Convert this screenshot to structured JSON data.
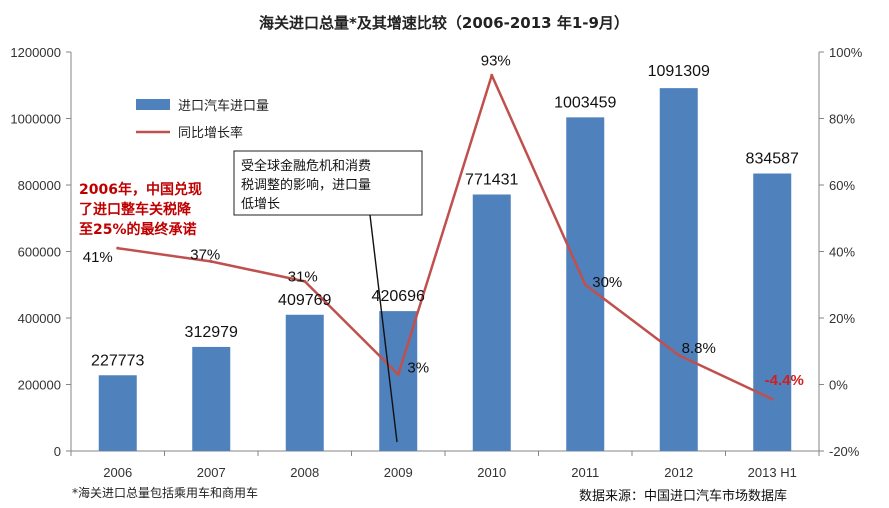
{
  "chart_data": {
    "type": "bar",
    "title": "海关进口总量*及其增速比较（2006-2013 年1-9月）",
    "categories": [
      "2006",
      "2007",
      "2008",
      "2009",
      "2010",
      "2011",
      "2012",
      "2013 H1"
    ],
    "series": [
      {
        "name": "进口汽车进口量",
        "type": "bar",
        "axis": "left",
        "color": "#4f81bd",
        "values": [
          227773,
          312979,
          409769,
          420696,
          771431,
          1003459,
          1091309,
          834587
        ],
        "labels": [
          "227773",
          "312979",
          "409769",
          "420696",
          "771431",
          "1003459",
          "1091309",
          "834587"
        ]
      },
      {
        "name": "同比增长率",
        "type": "line",
        "axis": "right",
        "color": "#c0504d",
        "values": [
          41,
          37,
          31,
          3,
          93,
          30,
          8.8,
          -4.4
        ],
        "labels": [
          "41%",
          "37%",
          "31%",
          "3%",
          "93%",
          "30%",
          "8.8%",
          "-4.4%"
        ]
      }
    ],
    "y_left": {
      "min": 0,
      "max": 1200000,
      "step": 200000,
      "ticks": [
        "0",
        "200000",
        "400000",
        "600000",
        "800000",
        "1000000",
        "1200000"
      ]
    },
    "y_right": {
      "min": -20,
      "max": 100,
      "step": 20,
      "ticks": [
        "-20%",
        "0%",
        "20%",
        "40%",
        "60%",
        "80%",
        "100%"
      ]
    },
    "legend_position": "top-left",
    "annotations": {
      "red_note": [
        "2006年，中国兑现",
        "了进口整车关税降",
        "至25%的最终承诺"
      ],
      "callout": [
        "受全球金融危机和消费",
        "税调整的影响，进口量",
        "低增长"
      ]
    },
    "footnote": "*海关进口总量包括乘用车和商用车",
    "source": "数据来源：中国进口汽车市场数据库"
  }
}
